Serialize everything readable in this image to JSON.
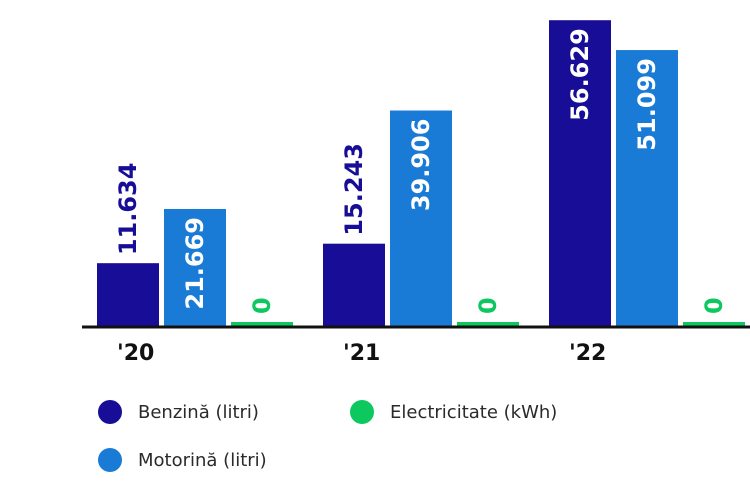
{
  "chart_data": {
    "type": "bar",
    "categories": [
      "'20",
      "'21",
      "'22"
    ],
    "series": [
      {
        "name": "Benzină (litri)",
        "values": [
          11634,
          15243,
          56629
        ],
        "labels": [
          "11.634",
          "15.243",
          "56.629"
        ],
        "color": "#170d96"
      },
      {
        "name": "Motorină (litri)",
        "values": [
          21669,
          39906,
          51099
        ],
        "labels": [
          "21.669",
          "39.906",
          "51.099"
        ],
        "color": "#1a7bd6"
      },
      {
        "name": "Electricitate (kWh)",
        "values": [
          0,
          0,
          0
        ],
        "labels": [
          "0",
          "0",
          "0"
        ],
        "color": "#0cc85f"
      }
    ],
    "ylim": [
      0,
      60000
    ],
    "grid": false,
    "legend_position": "bottom-left"
  }
}
